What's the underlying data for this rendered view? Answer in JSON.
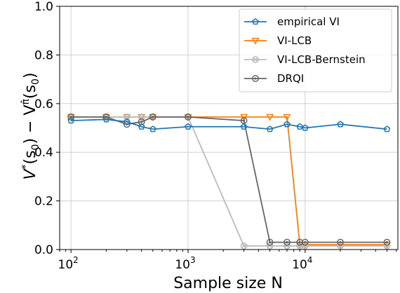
{
  "chart_data": {
    "type": "line",
    "xlabel": "Sample size N",
    "ylabel_parts": {
      "a": "V",
      "a_sup": "*",
      "b": "(s",
      "b_sub": "0",
      "c": ") − V",
      "c_sup": "π̂",
      "d": "(s",
      "d_sub": "0",
      "e": ")"
    },
    "xscale": "log",
    "xlim": [
      80,
      62000
    ],
    "ylim": [
      0.0,
      1.0
    ],
    "grid": true,
    "legend_position": "top-right",
    "x_ticks": [
      {
        "value": 100,
        "base": "10",
        "exp": "2"
      },
      {
        "value": 1000,
        "base": "10",
        "exp": "3"
      },
      {
        "value": 10000,
        "base": "10",
        "exp": "4"
      }
    ],
    "y_ticks": [
      "0.0",
      "0.2",
      "0.4",
      "0.6",
      "0.8",
      "1.0"
    ],
    "series": [
      {
        "name": "empirical VI",
        "color": "#1f77b4",
        "marker": "pentagon",
        "x": [
          100,
          200,
          300,
          400,
          500,
          1000,
          3000,
          5000,
          7000,
          9000,
          10000,
          20000,
          50000
        ],
        "y": [
          0.53,
          0.535,
          0.525,
          0.505,
          0.495,
          0.505,
          0.505,
          0.495,
          0.515,
          0.505,
          0.5,
          0.515,
          0.495
        ]
      },
      {
        "name": "VI-LCB",
        "color": "#ff7f0e",
        "marker": "triangle-down",
        "x": [
          100,
          200,
          300,
          400,
          500,
          1000,
          3000,
          5000,
          7000,
          9000,
          10000,
          20000,
          50000
        ],
        "y": [
          0.545,
          0.545,
          0.545,
          0.545,
          0.545,
          0.545,
          0.545,
          0.545,
          0.545,
          0.02,
          0.02,
          0.02,
          0.02
        ]
      },
      {
        "name": "VI-LCB-Bernstein",
        "color": "#bbbbbb",
        "marker": "x-circle",
        "x": [
          100,
          200,
          300,
          400,
          500,
          1000,
          3000,
          5000,
          7000,
          9000,
          10000,
          20000,
          50000
        ],
        "y": [
          0.545,
          0.545,
          0.545,
          0.545,
          0.545,
          0.545,
          0.015,
          0.015,
          0.015,
          0.015,
          0.015,
          0.015,
          0.015
        ]
      },
      {
        "name": "DRQI",
        "color": "#666666",
        "marker": "circle-dot",
        "x": [
          100,
          200,
          300,
          400,
          500,
          1000,
          3000,
          5000,
          7000,
          9000,
          10000,
          20000,
          50000
        ],
        "y": [
          0.545,
          0.545,
          0.515,
          0.525,
          0.545,
          0.545,
          0.53,
          0.03,
          0.03,
          0.03,
          0.03,
          0.03,
          0.03
        ]
      }
    ]
  }
}
